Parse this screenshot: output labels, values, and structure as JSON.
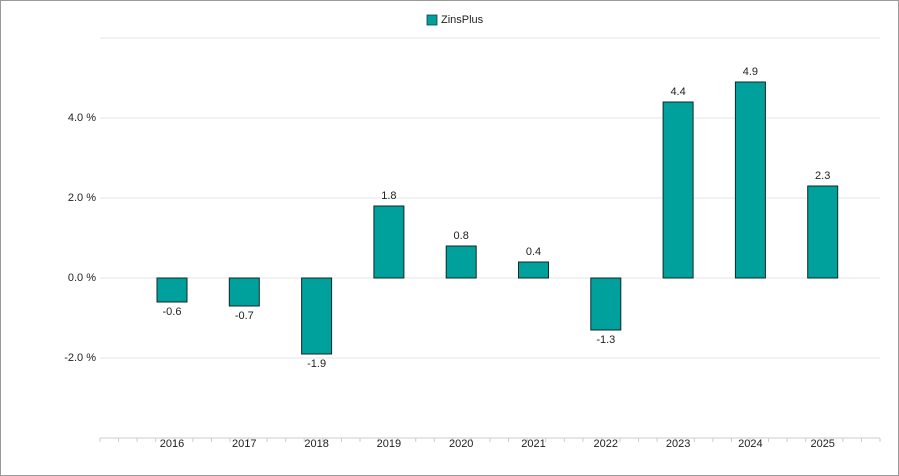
{
  "chart_data": {
    "type": "bar",
    "legend": "ZinsPlus",
    "categories": [
      "2016",
      "2017",
      "2018",
      "2019",
      "2020",
      "2021",
      "2022",
      "2023",
      "2024",
      "2025"
    ],
    "series": [
      {
        "name": "ZinsPlus",
        "color": "#00a19c",
        "values": [
          -0.6,
          -0.7,
          -1.9,
          1.8,
          0.8,
          0.4,
          -1.3,
          4.4,
          4.9,
          2.3
        ]
      }
    ],
    "ylim": [
      -4,
      6
    ],
    "yticks": [
      {
        "value": -2,
        "label": "-2.0 %"
      },
      {
        "value": 0,
        "label": "0.0 %"
      },
      {
        "value": 2,
        "label": "2.0 %"
      },
      {
        "value": 4,
        "label": "4.0 %"
      }
    ],
    "grid": true,
    "legend_position": "top"
  }
}
